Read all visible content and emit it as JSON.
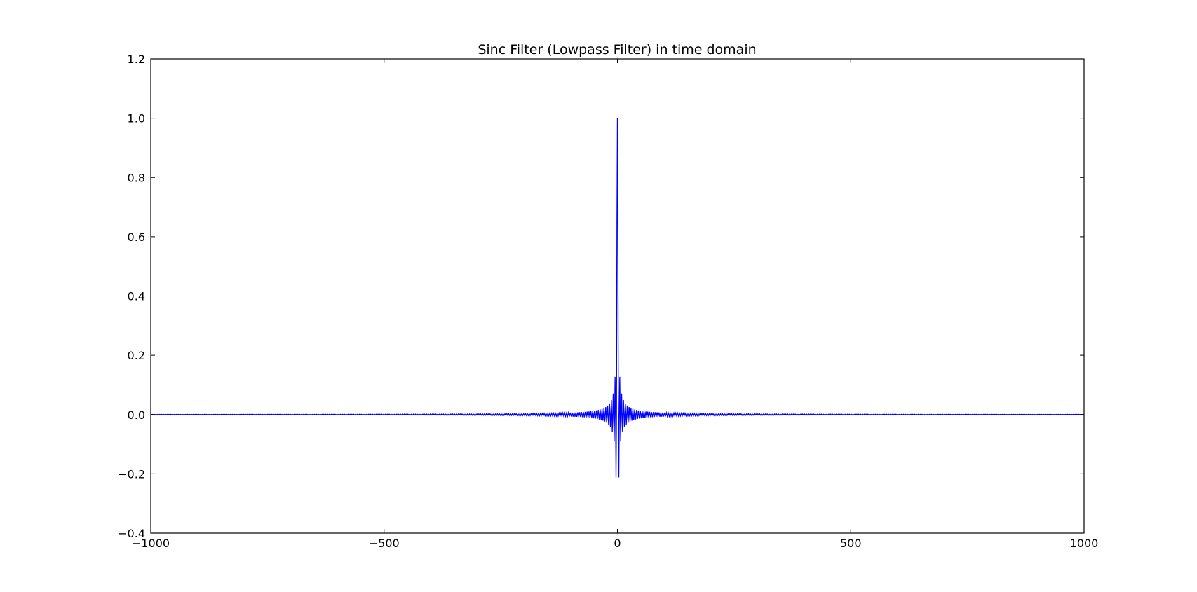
{
  "chart_data": {
    "type": "line",
    "title": "Sinc Filter (Lowpass Filter) in time domain",
    "xlabel": "",
    "ylabel": "",
    "xlim": [
      -1000,
      1000
    ],
    "ylim": [
      -0.4,
      1.2
    ],
    "x_ticks": [
      -1000,
      -500,
      0,
      500,
      1000
    ],
    "x_tick_labels": [
      "−1000",
      "−500",
      "0",
      "500",
      "1000"
    ],
    "y_ticks": [
      -0.4,
      -0.2,
      0.0,
      0.2,
      0.4,
      0.6,
      0.8,
      1.0,
      1.2
    ],
    "y_tick_labels": [
      "−0.4",
      "−0.2",
      "0.0",
      "0.2",
      "0.4",
      "0.6",
      "0.8",
      "1.0",
      "1.2"
    ],
    "grid": false,
    "legend": "none",
    "series": [
      {
        "color": "#0000ff",
        "function": "sinc",
        "peak": 1.0,
        "min": -0.217,
        "x_range": [
          -1000,
          1000
        ]
      }
    ]
  }
}
